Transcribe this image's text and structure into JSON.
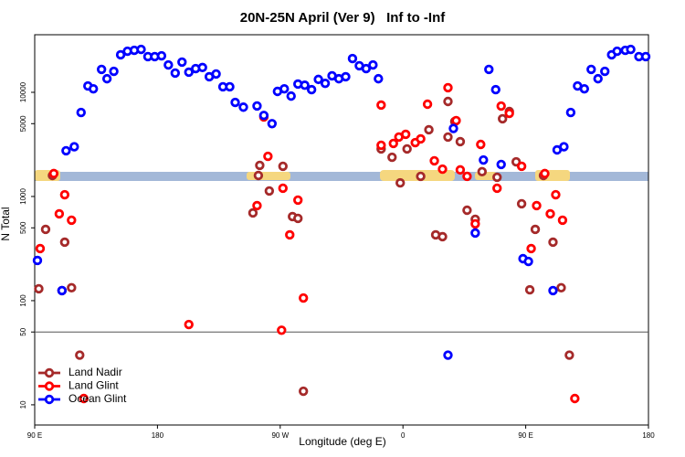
{
  "chart_data": {
    "type": "scatter",
    "title": "20N-25N April (Ver 9)   Inf to -Inf",
    "x_label": "Longitude (deg E)",
    "y_label": "N Total",
    "log_y": true,
    "legend": "bottom-left",
    "xlim": [
      90,
      540
    ],
    "ylim": [
      6.4,
      35700
    ],
    "xticks": [
      {
        "value": 90,
        "label": "90 E"
      },
      180,
      {
        "value": 270,
        "label": "90 W"
      },
      {
        "value": 360,
        "label": "0"
      },
      {
        "value": 450,
        "label": "90 E"
      },
      {
        "value": 540,
        "label": "180"
      }
    ],
    "yticks": [
      10,
      50,
      100,
      500,
      1000,
      5000,
      10000
    ],
    "series": [
      {
        "name": "Land Nadir",
        "color": "#a52a2a",
        "x": [
          93,
          98,
          103,
          110,
          112,
          117,
          123,
          250,
          254,
          255,
          262,
          272,
          279,
          283,
          287,
          344,
          352,
          358,
          363,
          373,
          379,
          384,
          389,
          393,
          393,
          398,
          402,
          407,
          413,
          418,
          429,
          433,
          438,
          443,
          447,
          453,
          457,
          463,
          470,
          476,
          482
        ],
        "values": [
          130,
          483,
          1590,
          125,
          364,
          133,
          30,
          695,
          1590,
          1990,
          1130,
          1950,
          641,
          616,
          13.5,
          2860,
          2380,
          1350,
          2860,
          1560,
          4370,
          428,
          411,
          8170,
          3720,
          5240,
          3360,
          738,
          604,
          1730,
          1530,
          5570,
          6540,
          2150,
          851,
          127,
          483,
          1590,
          364,
          133,
          30
        ]
      },
      {
        "name": "Land Glint",
        "color": "#ff0000",
        "x": [
          94,
          104,
          108,
          112,
          117,
          126,
          203,
          253,
          258,
          261,
          271,
          272,
          277,
          283,
          287,
          344,
          344,
          353,
          357,
          362,
          369,
          373,
          378,
          383,
          389,
          393,
          399,
          402,
          407,
          413,
          417,
          429,
          432,
          438,
          447,
          454,
          458,
          464,
          468,
          472,
          477,
          486
        ],
        "values": [
          316,
          1660,
          681,
          1040,
          592,
          11.5,
          59,
          817,
          5800,
          2430,
          52,
          1200,
          428,
          923,
          106,
          3100,
          7540,
          3230,
          3720,
          3950,
          3290,
          3570,
          7690,
          2200,
          1830,
          11070,
          5350,
          1800,
          1560,
          546,
          3160,
          1200,
          7380,
          6280,
          1950,
          316,
          817,
          1660,
          681,
          1040,
          592,
          11.5
        ]
      },
      {
        "name": "Ocean Glint",
        "color": "#0000ff",
        "x": [
          92,
          110,
          113,
          119,
          124,
          129,
          133,
          139,
          143,
          148,
          153,
          158,
          163,
          168,
          173,
          178,
          183,
          188,
          193,
          198,
          203,
          208,
          213,
          218,
          223,
          228,
          233,
          237,
          243,
          253,
          258,
          264,
          268,
          273,
          278,
          283,
          288,
          293,
          298,
          303,
          308,
          313,
          318,
          323,
          328,
          333,
          338,
          342,
          393,
          397,
          413,
          419,
          423,
          428,
          432,
          448,
          452,
          470,
          473,
          478,
          483,
          488,
          493,
          498,
          503,
          508,
          513,
          517,
          523,
          527,
          533,
          538
        ],
        "values": [
          243,
          125,
          2750,
          3000,
          6400,
          11500,
          10800,
          16600,
          13500,
          15900,
          22900,
          24800,
          25300,
          25800,
          22000,
          22000,
          22400,
          18300,
          15300,
          19500,
          15600,
          16900,
          17300,
          14100,
          15000,
          11300,
          11300,
          8000,
          7200,
          7400,
          6000,
          5000,
          10200,
          10800,
          9200,
          12000,
          11700,
          10600,
          13300,
          12200,
          14400,
          13500,
          14100,
          21100,
          18000,
          16900,
          18300,
          13500,
          30,
          4500,
          446,
          2240,
          16600,
          10600,
          2030,
          253,
          238,
          125,
          2800,
          3000,
          6400,
          11500,
          10800,
          16600,
          13500,
          15900,
          22900,
          24800,
          25300,
          25800,
          22000,
          22000
        ]
      }
    ]
  }
}
